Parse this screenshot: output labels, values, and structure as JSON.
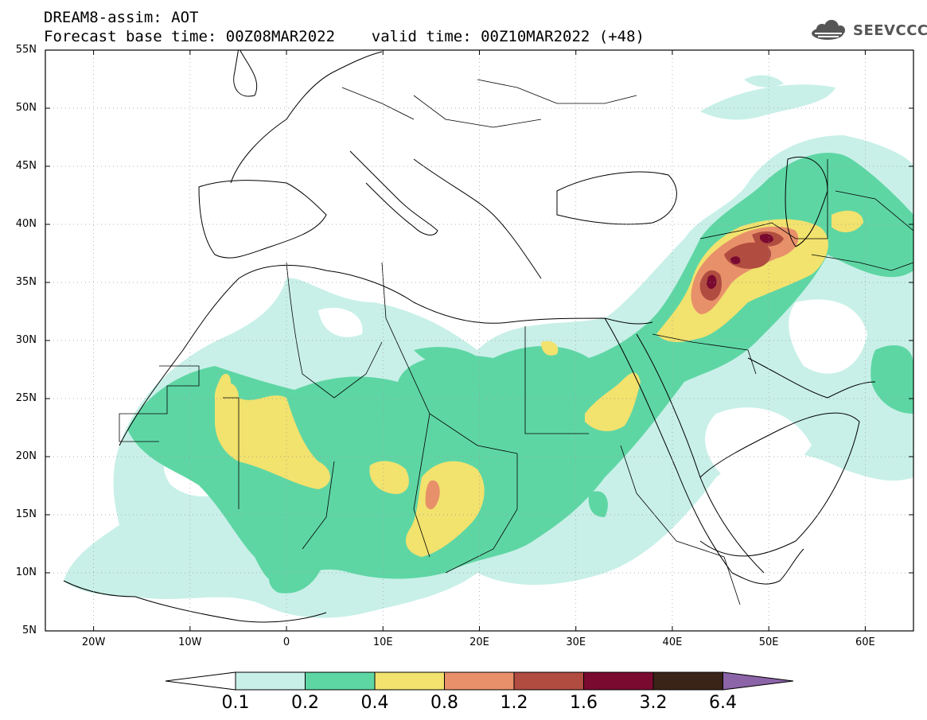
{
  "header": {
    "line1": "DREAM8-assim: AOT",
    "line2": "Forecast base time: 00Z08MAR2022    valid time: 00Z10MAR2022 (+48)"
  },
  "logo": {
    "text": "SEEVCCC",
    "icon": "cloud-icon"
  },
  "map": {
    "projection": "cylindrical",
    "lon_range": [
      -25,
      65
    ],
    "lat_range": [
      5,
      55
    ],
    "lat_labels": [
      "55N",
      "50N",
      "45N",
      "40N",
      "35N",
      "30N",
      "25N",
      "20N",
      "15N",
      "10N",
      "5N"
    ],
    "lon_labels": [
      "20W",
      "10W",
      "0",
      "10E",
      "20E",
      "30E",
      "40E",
      "50E",
      "60E"
    ],
    "lon_values": [
      -20,
      -10,
      0,
      10,
      20,
      30,
      40,
      50,
      60
    ],
    "lat_values": [
      55,
      50,
      45,
      40,
      35,
      30,
      25,
      20,
      15,
      10,
      5
    ]
  },
  "colorbar": {
    "labels": [
      "0.1",
      "0.2",
      "0.4",
      "0.8",
      "1.2",
      "1.6",
      "3.2",
      "6.4"
    ],
    "colors": [
      "#c8f0e8",
      "#5ed6a4",
      "#f2e26e",
      "#e8906a",
      "#b04c40",
      "#7a0a30",
      "#3a2418",
      "#8c64a8"
    ]
  }
}
